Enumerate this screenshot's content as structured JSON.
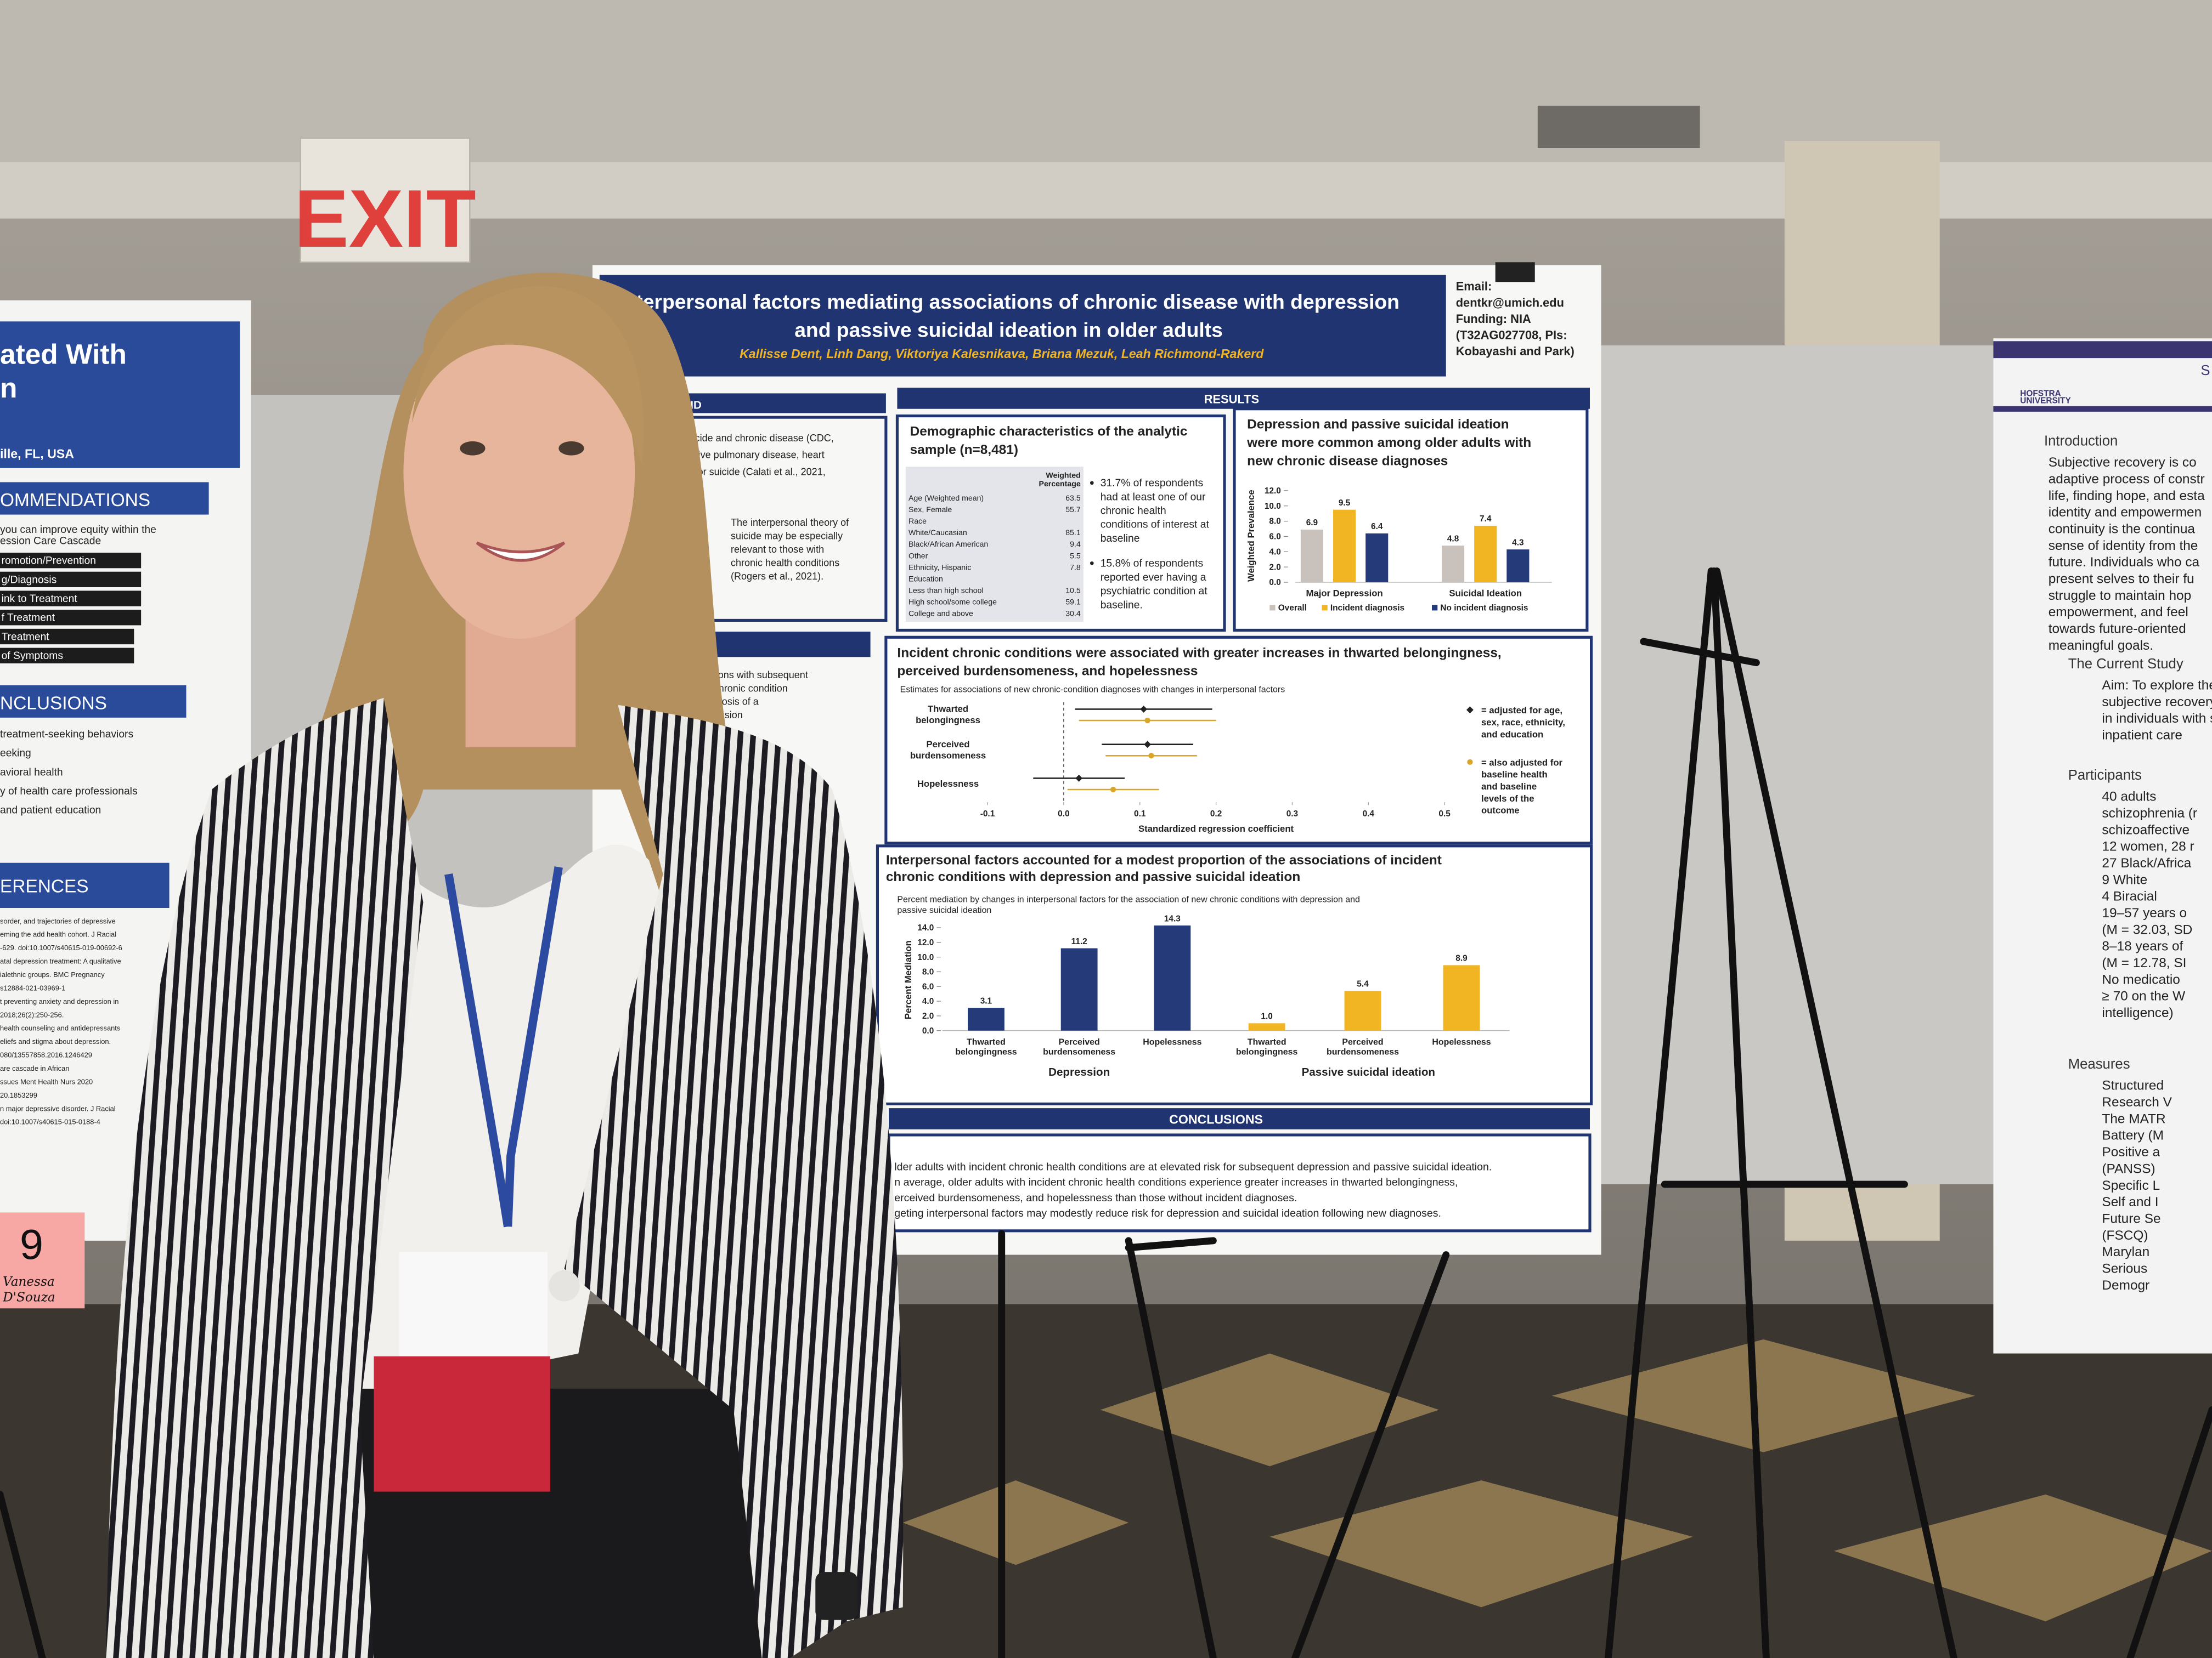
{
  "exit_sign": "EXIT",
  "left_poster": {
    "title_lines": [
      "ated With",
      "n"
    ],
    "location": "ille, FL, USA",
    "recommendations": {
      "heading": "OMMENDATIONS",
      "intro": [
        "you can improve equity within the",
        "ession Care Cascade"
      ],
      "steps": [
        "romotion/Prevention",
        "g/Diagnosis",
        "ink to Treatment",
        "f Treatment",
        "Treatment",
        "of Symptoms"
      ]
    },
    "conclusions": {
      "heading": "NCLUSIONS",
      "items": [
        "treatment-seeking behaviors",
        "eeking",
        "avioral health",
        "y of health care professionals",
        "and patient education"
      ]
    },
    "references": {
      "heading": "ERENCES",
      "items": [
        "sorder, and trajectories of depressive",
        "eming the add health cohort. J Racial",
        "-629. doi:10.1007/s40615-019-00692-6",
        "atal depression treatment: A qualitative",
        "ialethnic groups. BMC Pregnancy",
        "s12884-021-03969-1",
        "t preventing anxiety and depression in",
        "2018;26(2):250-256.",
        "health counseling and antidepressants",
        "eliefs and stigma about depression.",
        "080/13557858.2016.1246429",
        "are cascade in African",
        "ssues Ment Health Nurs 2020",
        "20.1853299",
        "n major depressive disorder. J Racial",
        "doi:10.1007/s40615-015-0188-4"
      ]
    },
    "booth_number": 9,
    "name_tag": [
      "Vanessa",
      "D'Souza"
    ]
  },
  "poster": {
    "title_lines": [
      "Interpersonal factors mediating associations of chronic disease with depression",
      "and passive suicidal ideation in older adults"
    ],
    "authors": "Kallisse Dent, Linh Dang, Viktoriya Kalesnikava, Briana Mezuk, Leah Richmond-Rakerd",
    "contact_lines": [
      "Email:",
      "dentkr@umich.edu",
      "Funding: NIA",
      "(T32AG027708, PIs:",
      "Kobayashi and Park)"
    ],
    "background": {
      "heading": "ROUND",
      "lines": [
        "n of suicide and chronic disease (CDC,",
        "obstructive pulmonary disease, heart",
        "ed risk for suicide (Calati et al., 2021,",
        "al., 2021)"
      ],
      "theory_lines": [
        "The interpersonal theory of",
        "suicide may be especially",
        "relevant to those with",
        "chronic health conditions",
        "(Rogers et al., 2021)."
      ],
      "aims_lines": [
        "ditions with subsequent",
        "a chronic condition",
        "agnosis of a",
        "pression"
      ]
    },
    "results_heading": "RESULTS",
    "demographics": {
      "title_lines": [
        "Demographic characteristics of the analytic",
        "sample (n=8,481)"
      ],
      "column_header": [
        "Weighted",
        "Percentage"
      ],
      "rows": [
        {
          "label": "Age (Weighted mean)",
          "value": 63.5
        },
        {
          "label": "Sex, Female",
          "value": 55.7
        },
        {
          "label": "Race",
          "value": null
        },
        {
          "label": "White/Caucasian",
          "value": 85.1
        },
        {
          "label": "Black/African American",
          "value": 9.4
        },
        {
          "label": "Other",
          "value": 5.5
        },
        {
          "label": "Ethnicity, Hispanic",
          "value": 7.8
        },
        {
          "label": "Education",
          "value": null
        },
        {
          "label": "Less than high school",
          "value": 10.5
        },
        {
          "label": "High school/some college",
          "value": 59.1
        },
        {
          "label": "College and above",
          "value": 30.4
        }
      ],
      "bullets": [
        [
          "31.7% of respondents",
          "had at least one of our",
          "chronic health",
          "conditions of interest at",
          "baseline"
        ],
        [
          "15.8% of respondents",
          "reported ever having a",
          "psychiatric condition at",
          "baseline."
        ]
      ]
    },
    "conclusions": {
      "heading": "CONCLUSIONS",
      "lines": [
        "lder adults with incident chronic health conditions are at elevated risk for subsequent depression and passive suicidal ideation.",
        "n average, older adults with incident chronic health conditions experience greater increases in thwarted belongingness,",
        "erceived burdensomeness, and hopelessness than those without incident diagnoses.",
        "geting interpersonal factors may modestly reduce risk for depression and suicidal ideation following new diagnoses."
      ]
    }
  },
  "chart_data": [
    {
      "type": "bar",
      "title_lines": [
        "Depression and passive suicidal ideation",
        "were more common among older adults with",
        "new chronic disease diagnoses"
      ],
      "ylabel": "Weighted Prevalence",
      "categories": [
        "Major Depression",
        "Suicidal Ideation"
      ],
      "series": [
        {
          "name": "Overall",
          "color": "#c9c1bb",
          "values": [
            6.9,
            4.8
          ]
        },
        {
          "name": "Incident diagnosis",
          "color": "#f1b524",
          "values": [
            9.5,
            7.4
          ]
        },
        {
          "name": "No incident diagnosis",
          "color": "#253a78",
          "values": [
            6.4,
            4.3
          ]
        }
      ],
      "ylim": [
        0,
        12
      ],
      "yticks": [
        {
          "value": 0,
          "label": "0.0"
        },
        {
          "value": 2,
          "label": "2.0"
        },
        {
          "value": 4,
          "label": "4.0"
        },
        {
          "value": 6,
          "label": "6.0"
        },
        {
          "value": 8,
          "label": "8.0"
        },
        {
          "value": 10,
          "label": "10.0"
        },
        {
          "value": 12,
          "label": "12.0"
        }
      ],
      "legend": "bottom"
    },
    {
      "type": "errorbar",
      "title_lines": [
        "Incident chronic conditions were associated with greater increases in thwarted belongingness,",
        "perceived burdensomeness, and hopelessness"
      ],
      "subtitle": "Estimates for associations of new chronic-condition diagnoses with changes in interpersonal factors",
      "xlabel": "Standardized regression coefficient",
      "categories": [
        [
          "Thwarted",
          "belongingness"
        ],
        [
          "Perceived",
          "burdensomeness"
        ],
        [
          "Hopelessness"
        ]
      ],
      "series": [
        {
          "name": [
            "= adjusted for age,",
            "sex, race, ethnicity,",
            "and education"
          ],
          "color": "#222222",
          "marker": "diamond",
          "values": [
            0.105,
            0.11,
            0.02
          ],
          "errors": [
            0.09,
            0.06,
            0.06
          ]
        },
        {
          "name": [
            "= also adjusted for",
            "baseline health",
            "and baseline",
            "levels of the",
            "outcome"
          ],
          "color": "#d9a62a",
          "marker": "circle",
          "values": [
            0.11,
            0.115,
            0.065
          ],
          "errors": [
            0.09,
            0.06,
            0.06
          ]
        }
      ],
      "xlim": [
        -0.1,
        0.5
      ],
      "xticks": [
        -0.1,
        {
          "value": 0,
          "label": "0.0"
        },
        0.1,
        0.2,
        0.3,
        0.4,
        0.5
      ],
      "legend": "right"
    },
    {
      "type": "bar",
      "title_lines": [
        "Interpersonal factors accounted for a modest proportion of the associations of incident",
        "chronic conditions with depression and passive suicidal ideation"
      ],
      "subtitle_lines": [
        "Percent mediation by changes in interpersonal factors for the association of new chronic conditions with depression and",
        "passive suicidal ideation"
      ],
      "ylabel": "Percent Mediation",
      "groups": [
        {
          "name": "Depression",
          "color": "#253a78",
          "categories": [
            [
              "Thwarted",
              "belongingness"
            ],
            [
              "Perceived",
              "burdensomeness"
            ],
            [
              "Hopelessness"
            ]
          ],
          "values": [
            3.1,
            11.2,
            14.3
          ]
        },
        {
          "name": "Passive suicidal ideation",
          "color": "#f1b524",
          "categories": [
            [
              "Thwarted",
              "belongingness"
            ],
            [
              "Perceived",
              "burdensomeness"
            ],
            [
              "Hopelessness"
            ]
          ],
          "values": [
            1.0,
            5.4,
            8.9
          ],
          "value_labels": [
            "1.0",
            "5.4",
            "8.9"
          ]
        }
      ],
      "ylim": [
        0,
        14
      ],
      "yticks": [
        {
          "value": 0,
          "label": "0.0"
        },
        {
          "value": 2,
          "label": "2.0"
        },
        {
          "value": 4,
          "label": "4.0"
        },
        {
          "value": 6,
          "label": "6.0"
        },
        {
          "value": 8,
          "label": "8.0"
        },
        {
          "value": 10,
          "label": "10.0"
        },
        {
          "value": 12,
          "label": "12.0"
        },
        {
          "value": 14,
          "label": "14.0"
        }
      ]
    }
  ],
  "right_poster": {
    "logo": [
      "HOFSTRA",
      "UNIVERSITY"
    ],
    "header": "S",
    "introduction": {
      "heading": "Introduction",
      "lines": [
        "Subjective recovery is co",
        "adaptive process of constr",
        "life, finding hope, and esta",
        "identity and empowermen",
        "continuity is the continua",
        "sense of identity from the",
        "future. Individuals who ca",
        "present selves to their fu",
        "struggle to maintain hop",
        "empowerment, and feel",
        "towards future-oriented",
        "meaningful goals."
      ]
    },
    "current_study": {
      "heading": "The Current Study",
      "lines": [
        "Aim: To explore the re",
        "subjective recovery a",
        "in individuals with sch",
        "inpatient care"
      ]
    },
    "participants": {
      "heading": "Participants",
      "lines": [
        "40 adults",
        "schizophrenia (r",
        "schizoaffective",
        "12 women, 28 r",
        "27 Black/Africa",
        "9 White",
        "4 Biracial",
        "19–57 years o",
        "(M = 32.03, SD",
        "8–18 years of",
        "(M = 12.78, SI",
        "No medicatio",
        "≥ 70 on the W",
        "intelligence)"
      ]
    },
    "measures": {
      "heading": "Measures",
      "lines": [
        "Structured",
        "Research V",
        "The MATR",
        "Battery (M",
        "Positive a",
        "(PANSS)",
        "Specific L",
        "Self and I",
        "Future Se",
        "(FSCQ)",
        "Marylan",
        "Serious",
        "Demogr"
      ]
    }
  }
}
